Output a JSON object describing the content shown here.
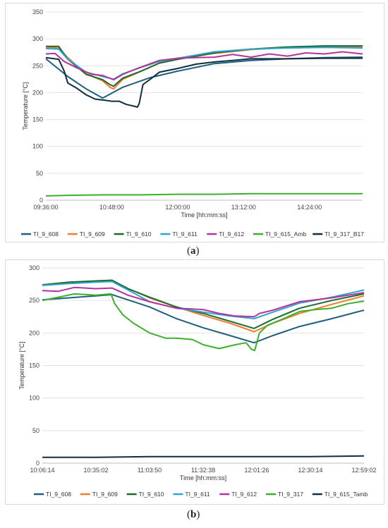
{
  "captions": {
    "a": "a",
    "b": "b"
  },
  "chart_data": [
    {
      "type": "line",
      "xlabel": "Time [hh:mm:ss]",
      "ylabel": "Temperature [°C]",
      "x_ticks": [
        "09:36:00",
        "10:48:00",
        "12:00:00",
        "13:12:00",
        "14:24:00"
      ],
      "x_tick_values": [
        576,
        648,
        720,
        792,
        864
      ],
      "x_range": [
        576,
        922
      ],
      "ylim": [
        0,
        350
      ],
      "y_ticks": [
        0,
        50,
        100,
        150,
        200,
        250,
        300,
        350
      ],
      "grid": "horizontal",
      "legend_position": "bottom",
      "series": [
        {
          "name": "TI_9_608",
          "color": "#1f5e7d",
          "points": [
            [
              576,
              263
            ],
            [
              600,
              230
            ],
            [
              620,
              207
            ],
            [
              638,
              190
            ],
            [
              660,
              210
            ],
            [
              690,
              228
            ],
            [
              720,
              240
            ],
            [
              760,
              254
            ],
            [
              800,
              260
            ],
            [
              840,
              263
            ],
            [
              880,
              265
            ],
            [
              922,
              266
            ]
          ]
        },
        {
          "name": "TI_9_609",
          "color": "#ed7d31",
          "points": [
            [
              576,
              285
            ],
            [
              590,
              283
            ],
            [
              600,
              265
            ],
            [
              620,
              235
            ],
            [
              638,
              222
            ],
            [
              646,
              210
            ],
            [
              650,
              207
            ],
            [
              660,
              225
            ],
            [
              680,
              240
            ],
            [
              700,
              255
            ],
            [
              720,
              262
            ],
            [
              760,
              273
            ],
            [
              800,
              280
            ],
            [
              840,
              284
            ],
            [
              880,
              286
            ],
            [
              922,
              285
            ]
          ]
        },
        {
          "name": "TI_9_610",
          "color": "#1a6b2c",
          "points": [
            [
              576,
              286
            ],
            [
              590,
              286
            ],
            [
              600,
              262
            ],
            [
              620,
              234
            ],
            [
              638,
              224
            ],
            [
              646,
              215
            ],
            [
              650,
              212
            ],
            [
              660,
              227
            ],
            [
              680,
              240
            ],
            [
              700,
              255
            ],
            [
              720,
              262
            ],
            [
              760,
              274
            ],
            [
              800,
              281
            ],
            [
              840,
              285
            ],
            [
              880,
              287
            ],
            [
              922,
              287
            ]
          ]
        },
        {
          "name": "TI_9_611",
          "color": "#2ea4d3",
          "points": [
            [
              576,
              282
            ],
            [
              590,
              281
            ],
            [
              600,
              262
            ],
            [
              620,
              238
            ],
            [
              638,
              230
            ],
            [
              650,
              225
            ],
            [
              660,
              235
            ],
            [
              680,
              247
            ],
            [
              700,
              258
            ],
            [
              720,
              264
            ],
            [
              760,
              276
            ],
            [
              800,
              281
            ],
            [
              840,
              283
            ],
            [
              880,
              284
            ],
            [
              922,
              283
            ]
          ]
        },
        {
          "name": "TI_9_612",
          "color": "#b5339b",
          "points": [
            [
              576,
              272
            ],
            [
              586,
              273
            ],
            [
              596,
              258
            ],
            [
              610,
              246
            ],
            [
              626,
              234
            ],
            [
              638,
              232
            ],
            [
              650,
              224
            ],
            [
              660,
              234
            ],
            [
              676,
              245
            ],
            [
              700,
              260
            ],
            [
              720,
              264
            ],
            [
              740,
              265
            ],
            [
              760,
              266
            ],
            [
              780,
              271
            ],
            [
              800,
              266
            ],
            [
              820,
              272
            ],
            [
              840,
              268
            ],
            [
              860,
              274
            ],
            [
              880,
              272
            ],
            [
              900,
              276
            ],
            [
              922,
              272
            ]
          ]
        },
        {
          "name": "TI_9_615_Amb",
          "color": "#3cb02c",
          "points": [
            [
              576,
              8
            ],
            [
              600,
              9
            ],
            [
              640,
              10
            ],
            [
              680,
              10
            ],
            [
              720,
              11
            ],
            [
              760,
              11
            ],
            [
              800,
              12
            ],
            [
              840,
              12
            ],
            [
              880,
              12
            ],
            [
              922,
              12
            ]
          ]
        },
        {
          "name": "TI_9_317_B17",
          "color": "#0f2e40",
          "points": [
            [
              576,
              265
            ],
            [
              590,
              262
            ],
            [
              596,
              240
            ],
            [
              600,
              218
            ],
            [
              610,
              208
            ],
            [
              620,
              196
            ],
            [
              630,
              188
            ],
            [
              640,
              186
            ],
            [
              648,
              184
            ],
            [
              656,
              184
            ],
            [
              664,
              178
            ],
            [
              672,
              175
            ],
            [
              676,
              173
            ],
            [
              678,
              180
            ],
            [
              682,
              215
            ],
            [
              690,
              225
            ],
            [
              700,
              238
            ],
            [
              720,
              245
            ],
            [
              740,
              253
            ],
            [
              760,
              257
            ],
            [
              780,
              260
            ],
            [
              800,
              263
            ],
            [
              840,
              263
            ],
            [
              880,
              264
            ],
            [
              922,
              264
            ]
          ]
        }
      ]
    },
    {
      "type": "line",
      "xlabel": "Time [hh:mm:ss]",
      "ylabel": "Temperature [°C]",
      "x_ticks": [
        "10:06:14",
        "10:35:02",
        "11:03:50",
        "11:32:38",
        "12:01:26",
        "12:30:14",
        "12:59:02"
      ],
      "x_tick_values": [
        0,
        1,
        2,
        3,
        4,
        5,
        6
      ],
      "x_range": [
        0,
        6
      ],
      "ylim": [
        0,
        300
      ],
      "y_ticks": [
        0,
        50,
        100,
        150,
        200,
        250,
        300
      ],
      "grid": "horizontal",
      "legend_position": "bottom",
      "series": [
        {
          "name": "TI_9_608",
          "color": "#1f5e7d",
          "points": [
            [
              0,
              251
            ],
            [
              0.5,
              254
            ],
            [
              1,
              257
            ],
            [
              1.3,
              259
            ],
            [
              2,
              240
            ],
            [
              2.5,
              222
            ],
            [
              3,
              208
            ],
            [
              3.5,
              196
            ],
            [
              3.95,
              185
            ],
            [
              4.3,
              196
            ],
            [
              4.8,
              210
            ],
            [
              5.4,
              222
            ],
            [
              6,
              235
            ]
          ]
        },
        {
          "name": "TI_9_609",
          "color": "#ed7d31",
          "points": [
            [
              0,
              273
            ],
            [
              0.5,
              277
            ],
            [
              1,
              279
            ],
            [
              1.3,
              280
            ],
            [
              1.6,
              268
            ],
            [
              2,
              254
            ],
            [
              2.5,
              240
            ],
            [
              3,
              227
            ],
            [
              3.5,
              215
            ],
            [
              3.95,
              202
            ],
            [
              4.3,
              215
            ],
            [
              4.8,
              230
            ],
            [
              5.4,
              244
            ],
            [
              6,
              257
            ]
          ]
        },
        {
          "name": "TI_9_610",
          "color": "#1a6b2c",
          "points": [
            [
              0,
              274
            ],
            [
              0.5,
              278
            ],
            [
              1,
              280
            ],
            [
              1.3,
              281
            ],
            [
              1.6,
              268
            ],
            [
              2,
              255
            ],
            [
              2.5,
              240
            ],
            [
              3,
              230
            ],
            [
              3.5,
              218
            ],
            [
              3.95,
              207
            ],
            [
              4.3,
              221
            ],
            [
              4.8,
              238
            ],
            [
              5.4,
              250
            ],
            [
              6,
              260
            ]
          ]
        },
        {
          "name": "TI_9_611",
          "color": "#2ea4d3",
          "points": [
            [
              0,
              273
            ],
            [
              0.5,
              276
            ],
            [
              1,
              278
            ],
            [
              1.3,
              279
            ],
            [
              1.6,
              266
            ],
            [
              2,
              248
            ],
            [
              2.5,
              238
            ],
            [
              3,
              232
            ],
            [
              3.5,
              226
            ],
            [
              3.95,
              222
            ],
            [
              4.3,
              232
            ],
            [
              4.8,
              246
            ],
            [
              5.4,
              255
            ],
            [
              6,
              266
            ]
          ]
        },
        {
          "name": "TI_9_612",
          "color": "#b5339b",
          "points": [
            [
              0,
              265
            ],
            [
              0.3,
              264
            ],
            [
              0.6,
              270
            ],
            [
              1,
              268
            ],
            [
              1.3,
              269
            ],
            [
              1.6,
              258
            ],
            [
              2,
              248
            ],
            [
              2.5,
              238
            ],
            [
              3,
              236
            ],
            [
              3.3,
              230
            ],
            [
              3.6,
              226
            ],
            [
              3.95,
              225
            ],
            [
              4.05,
              230
            ],
            [
              4.3,
              235
            ],
            [
              4.8,
              248
            ],
            [
              5.4,
              254
            ],
            [
              6,
              262
            ]
          ]
        },
        {
          "name": "TI_9_317",
          "color": "#3cb02c",
          "points": [
            [
              0,
              250
            ],
            [
              0.3,
              255
            ],
            [
              0.6,
              260
            ],
            [
              1,
              258
            ],
            [
              1.28,
              260
            ],
            [
              1.35,
              245
            ],
            [
              1.5,
              228
            ],
            [
              1.7,
              215
            ],
            [
              2,
              200
            ],
            [
              2.3,
              192
            ],
            [
              2.5,
              192
            ],
            [
              2.8,
              190
            ],
            [
              3,
              182
            ],
            [
              3.3,
              176
            ],
            [
              3.6,
              182
            ],
            [
              3.8,
              185
            ],
            [
              3.9,
              175
            ],
            [
              3.96,
              173
            ],
            [
              4.05,
              200
            ],
            [
              4.2,
              212
            ],
            [
              4.5,
              222
            ],
            [
              4.8,
              233
            ],
            [
              5.1,
              236
            ],
            [
              5.4,
              238
            ],
            [
              5.7,
              245
            ],
            [
              6,
              249
            ]
          ]
        },
        {
          "name": "TI_9_615_Tamb",
          "color": "#0f2e40",
          "points": [
            [
              0,
              9
            ],
            [
              1,
              9
            ],
            [
              2,
              10
            ],
            [
              3,
              10
            ],
            [
              4,
              10
            ],
            [
              5,
              10
            ],
            [
              6,
              11
            ]
          ]
        }
      ]
    }
  ]
}
